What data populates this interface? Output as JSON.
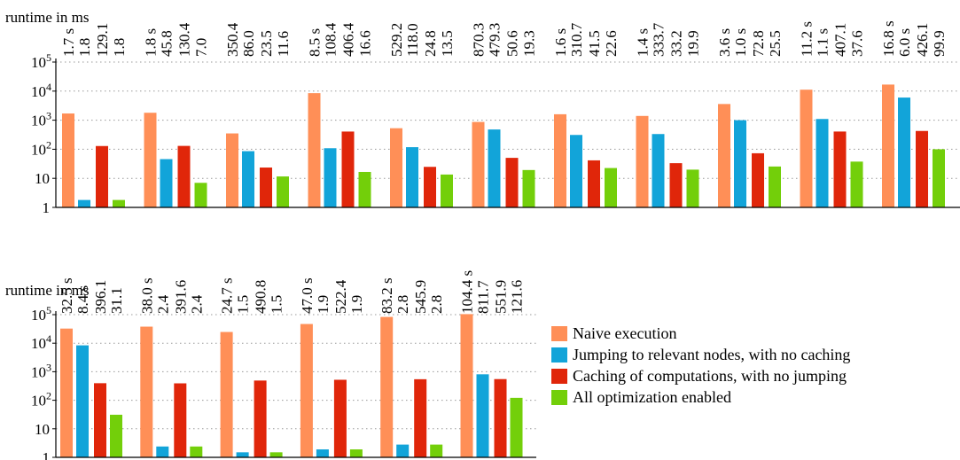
{
  "chart_data": [
    {
      "type": "bar",
      "ylabel": "runtime in ms",
      "yscale": "log",
      "ylim": [
        1,
        100000
      ],
      "yticks": [
        {
          "value": 1,
          "label": "1"
        },
        {
          "value": 10,
          "label": "10"
        },
        {
          "value": 100,
          "label": "10",
          "sup": "2"
        },
        {
          "value": 1000,
          "label": "10",
          "sup": "3"
        },
        {
          "value": 10000,
          "label": "10",
          "sup": "4"
        },
        {
          "value": 100000,
          "label": "10",
          "sup": "5"
        }
      ],
      "grid": true,
      "series": [
        {
          "name": "Naive execution",
          "color": "#ff8f57",
          "values": [
            1700,
            1800,
            350.4,
            8500,
            529.2,
            870.3,
            1600,
            1400,
            3600,
            11200,
            16800
          ]
        },
        {
          "name": "Jumping to relevant nodes, with no caching",
          "color": "#12a4d9",
          "values": [
            1.8,
            45.8,
            86.0,
            108.4,
            118.0,
            479.3,
            310.7,
            333.7,
            1000,
            1100,
            6000
          ]
        },
        {
          "name": "Caching of computations, with no jumping",
          "color": "#e0260a",
          "values": [
            129.1,
            130.4,
            23.5,
            406.4,
            24.8,
            50.6,
            41.5,
            33.2,
            72.8,
            407.1,
            426.1
          ]
        },
        {
          "name": "All optimization enabled",
          "color": "#73cf0a",
          "values": [
            1.8,
            7.0,
            11.6,
            16.6,
            13.5,
            19.3,
            22.6,
            19.9,
            25.5,
            37.6,
            99.9
          ]
        }
      ],
      "data_labels": [
        [
          "1.7 s",
          "1.8",
          "129.1",
          "1.8"
        ],
        [
          "1.8 s",
          "45.8",
          "130.4",
          "7.0"
        ],
        [
          "350.4",
          "86.0",
          "23.5",
          "11.6"
        ],
        [
          "8.5 s",
          "108.4",
          "406.4",
          "16.6"
        ],
        [
          "529.2",
          "118.0",
          "24.8",
          "13.5"
        ],
        [
          "870.3",
          "479.3",
          "50.6",
          "19.3"
        ],
        [
          "1.6 s",
          "310.7",
          "41.5",
          "22.6"
        ],
        [
          "1.4 s",
          "333.7",
          "33.2",
          "19.9"
        ],
        [
          "3.6 s",
          "1.0 s",
          "72.8",
          "25.5"
        ],
        [
          "11.2 s",
          "1.1 s",
          "407.1",
          "37.6"
        ],
        [
          "16.8 s",
          "6.0 s",
          "426.1",
          "99.9"
        ]
      ]
    },
    {
      "type": "bar",
      "ylabel": "runtime in ms",
      "yscale": "log",
      "ylim": [
        1,
        100000
      ],
      "yticks": [
        {
          "value": 1,
          "label": "1"
        },
        {
          "value": 10,
          "label": "10"
        },
        {
          "value": 100,
          "label": "10",
          "sup": "2"
        },
        {
          "value": 1000,
          "label": "10",
          "sup": "3"
        },
        {
          "value": 10000,
          "label": "10",
          "sup": "4"
        },
        {
          "value": 100000,
          "label": "10",
          "sup": "5"
        }
      ],
      "grid": true,
      "series": [
        {
          "name": "Naive execution",
          "color": "#ff8f57",
          "values": [
            32500,
            38000,
            24700,
            47000,
            83200,
            104400
          ]
        },
        {
          "name": "Jumping to relevant nodes, with no caching",
          "color": "#12a4d9",
          "values": [
            8400,
            2.4,
            1.5,
            1.9,
            2.8,
            811.7
          ]
        },
        {
          "name": "Caching of computations, with no jumping",
          "color": "#e0260a",
          "values": [
            396.1,
            391.6,
            490.8,
            522.4,
            545.9,
            551.9
          ]
        },
        {
          "name": "All optimization enabled",
          "color": "#73cf0a",
          "values": [
            31.1,
            2.4,
            1.5,
            1.9,
            2.8,
            121.6
          ]
        }
      ],
      "data_labels": [
        [
          "32.5 s",
          "8.4 s",
          "396.1",
          "31.1"
        ],
        [
          "38.0 s",
          "2.4",
          "391.6",
          "2.4"
        ],
        [
          "24.7 s",
          "1.5",
          "490.8",
          "1.5"
        ],
        [
          "47.0 s",
          "1.9",
          "522.4",
          "1.9"
        ],
        [
          "83.2 s",
          "2.8",
          "545.9",
          "2.8"
        ],
        [
          "104.4 s",
          "811.7",
          "551.9",
          "121.6"
        ]
      ]
    }
  ],
  "legend": {
    "placement": "right",
    "items": [
      {
        "label": "Naive execution",
        "color": "#ff8f57"
      },
      {
        "label": "Jumping to relevant nodes, with no caching",
        "color": "#12a4d9"
      },
      {
        "label": "Caching of computations, with no jumping",
        "color": "#e0260a"
      },
      {
        "label": "All optimization enabled",
        "color": "#73cf0a"
      }
    ]
  }
}
